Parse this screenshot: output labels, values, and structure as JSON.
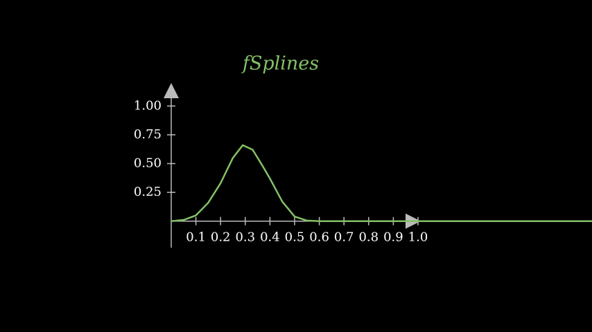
{
  "chart_data": {
    "type": "line",
    "title": "fSplines",
    "x": [
      0,
      0.05,
      0.1,
      0.15,
      0.2,
      0.25,
      0.29,
      0.33,
      0.37,
      0.4,
      0.45,
      0.5,
      0.55,
      0.6,
      1.0,
      1.705
    ],
    "series": [
      {
        "name": "fSplines",
        "color": "#83c167",
        "values": [
          0,
          0.01,
          0.05,
          0.16,
          0.33,
          0.55,
          0.66,
          0.62,
          0.48,
          0.37,
          0.17,
          0.04,
          0.005,
          0,
          0,
          0
        ]
      }
    ],
    "xlim": [
      0,
      1.0
    ],
    "ylim": [
      -0.23,
      1.2
    ],
    "xticks": [
      0.1,
      0.2,
      0.3,
      0.4,
      0.5,
      0.6,
      0.7,
      0.8,
      0.9,
      {
        "value": 1,
        "label": "1.0"
      }
    ],
    "yticks": [
      0.25,
      {
        "value": 0.5,
        "label": "0.50"
      },
      0.75,
      {
        "value": 1,
        "label": "1.00"
      }
    ],
    "axis_color": "#bbbbbb"
  }
}
